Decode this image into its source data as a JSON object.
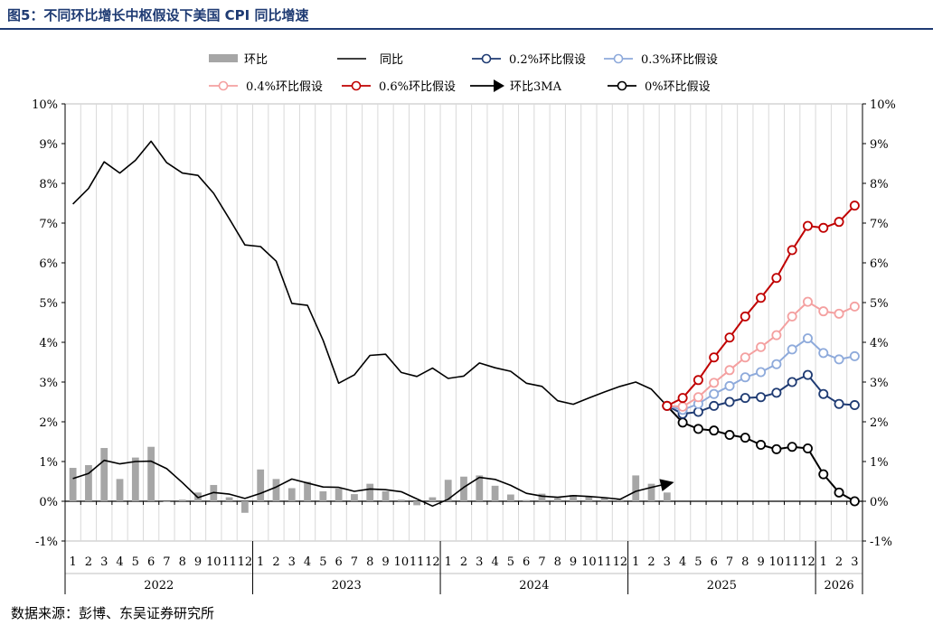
{
  "page": {
    "title": "图5：不同环比增长中枢假设下美国 CPI 同比增速",
    "source": "数据来源：彭博、东吴证券研究所"
  },
  "colors": {
    "yoy": "#000000",
    "mom_bar": "#a6a6a6",
    "s02": "#1f3b73",
    "s03": "#8eaadb",
    "s04": "#f4a0a0",
    "s06": "#c00000",
    "s00": "#000000"
  },
  "chart_data": {
    "type": "line",
    "title": "图5：不同环比增长中枢假设下美国 CPI 同比增速",
    "ylim": [
      -1,
      10
    ],
    "y_ticks": [
      "-1%",
      "0%",
      "1%",
      "2%",
      "3%",
      "4%",
      "5%",
      "6%",
      "7%",
      "8%",
      "9%",
      "10%"
    ],
    "x_months": [
      "1",
      "2",
      "3",
      "4",
      "5",
      "6",
      "7",
      "8",
      "9",
      "10",
      "11",
      "12",
      "1",
      "2",
      "3",
      "4",
      "5",
      "6",
      "7",
      "8",
      "9",
      "10",
      "11",
      "12",
      "1",
      "2",
      "3",
      "4",
      "5",
      "6",
      "7",
      "8",
      "9",
      "10",
      "11",
      "12",
      "1",
      "2",
      "3",
      "4",
      "5",
      "6",
      "7",
      "8",
      "9",
      "10",
      "11",
      "12",
      "1",
      "2",
      "3"
    ],
    "years": [
      {
        "label": "2022",
        "start": 0,
        "end": 11
      },
      {
        "label": "2023",
        "start": 12,
        "end": 23
      },
      {
        "label": "2024",
        "start": 24,
        "end": 35
      },
      {
        "label": "2025",
        "start": 36,
        "end": 47
      },
      {
        "label": "2026",
        "start": 48,
        "end": 50
      }
    ],
    "legend": {
      "mom": "环比",
      "yoy": "同比",
      "s02": "0.2%环比假设",
      "s03": "0.3%环比假设",
      "s04": "0.4%环比假设",
      "s06": "0.6%环比假设",
      "arrow": "环比3MA",
      "s00": "0%环比假设"
    },
    "series": [
      {
        "name": "环比",
        "kind": "bar",
        "start": 0,
        "values": [
          0.84,
          0.91,
          1.34,
          0.56,
          1.1,
          1.37,
          0.0,
          0.04,
          0.22,
          0.41,
          0.1,
          -0.29,
          0.8,
          0.56,
          0.33,
          0.49,
          0.25,
          0.32,
          0.18,
          0.44,
          0.25,
          0.04,
          -0.1,
          0.1,
          0.54,
          0.62,
          0.65,
          0.39,
          0.17,
          0.03,
          0.19,
          0.08,
          0.16,
          0.12,
          0.08,
          0.04,
          0.65,
          0.44,
          0.22
        ]
      },
      {
        "name": "同比",
        "kind": "line",
        "start": 0,
        "values": [
          7.48,
          7.87,
          8.54,
          8.26,
          8.58,
          9.06,
          8.52,
          8.26,
          8.2,
          7.75,
          7.11,
          6.45,
          6.41,
          6.04,
          4.98,
          4.93,
          4.05,
          2.97,
          3.18,
          3.67,
          3.7,
          3.24,
          3.14,
          3.35,
          3.09,
          3.15,
          3.48,
          3.36,
          3.27,
          2.97,
          2.89,
          2.53,
          2.44,
          2.6,
          2.75,
          2.89,
          3.0,
          2.82,
          2.4
        ]
      },
      {
        "name": "环比3MA",
        "kind": "line",
        "start": 0,
        "values": [
          0.57,
          0.7,
          1.03,
          0.94,
          1.0,
          1.01,
          0.82,
          0.47,
          0.09,
          0.22,
          0.18,
          0.07,
          0.2,
          0.36,
          0.56,
          0.46,
          0.36,
          0.35,
          0.25,
          0.31,
          0.29,
          0.24,
          0.06,
          -0.12,
          0.05,
          0.35,
          0.6,
          0.55,
          0.4,
          0.2,
          0.13,
          0.1,
          0.14,
          0.12,
          0.09,
          0.05,
          0.25,
          0.35,
          0.44
        ]
      },
      {
        "name": "0.2%环比假设",
        "kind": "marker-line",
        "start": 38,
        "values": [
          2.4,
          2.2,
          2.25,
          2.4,
          2.5,
          2.6,
          2.62,
          2.73,
          3.0,
          3.18,
          2.7,
          2.45,
          2.42
        ]
      },
      {
        "name": "0.3%环比假设",
        "kind": "marker-line",
        "start": 38,
        "values": [
          2.4,
          2.3,
          2.45,
          2.7,
          2.9,
          3.12,
          3.25,
          3.45,
          3.82,
          4.1,
          3.73,
          3.57,
          3.65
        ]
      },
      {
        "name": "0.4%环比假设",
        "kind": "marker-line",
        "start": 38,
        "values": [
          2.4,
          2.38,
          2.62,
          2.98,
          3.3,
          3.62,
          3.88,
          4.18,
          4.65,
          5.02,
          4.78,
          4.72,
          4.9
        ]
      },
      {
        "name": "0.6%环比假设",
        "kind": "marker-line",
        "start": 38,
        "values": [
          2.4,
          2.6,
          3.05,
          3.62,
          4.12,
          4.65,
          5.12,
          5.62,
          6.32,
          6.93,
          6.88,
          7.03,
          7.44
        ]
      },
      {
        "name": "0%环比假设",
        "kind": "marker-line",
        "start": 38,
        "values": [
          2.4,
          1.98,
          1.82,
          1.78,
          1.67,
          1.6,
          1.42,
          1.31,
          1.37,
          1.33,
          0.68,
          0.22,
          0.0
        ]
      }
    ]
  }
}
